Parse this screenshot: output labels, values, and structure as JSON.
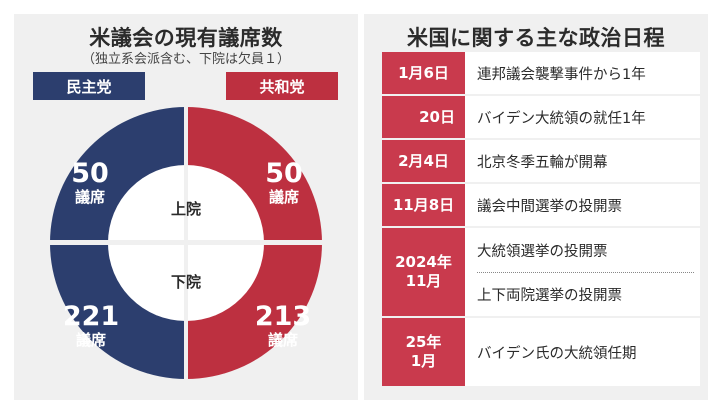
{
  "left_panel": {
    "title": "米議会の現有議席数",
    "subtitle": "（独立系会派含む、下院は欠員１）",
    "parties": {
      "democrat": "民主党",
      "republican": "共和党"
    },
    "upper_house": {
      "label": "上院",
      "democrat_seats": "50",
      "republican_seats": "50"
    },
    "lower_house": {
      "label": "下院",
      "democrat_seats": "221",
      "republican_seats": "213"
    },
    "seat_unit": "議席",
    "colors": {
      "democrat": "#2c3e6e",
      "republican": "#bd3040"
    }
  },
  "right_panel": {
    "title": "米国に関する主な政治日程",
    "schedule": [
      {
        "date": "1月6日",
        "event": "連邦議会襲撃事件から1年"
      },
      {
        "date": "20日",
        "event": "バイデン大統領の就任1年"
      },
      {
        "date": "2月4日",
        "event": "北京冬季五輪が開幕"
      },
      {
        "date": "11月8日",
        "event": "議会中間選挙の投開票"
      },
      {
        "date": "2024年\n11月",
        "event": "大統領選挙の投開票",
        "event2": "上下両院選挙の投開票"
      },
      {
        "date": "25年\n1月",
        "event": "バイデン氏の大統領任期"
      }
    ],
    "colors": {
      "date_bg": "#c93a4d"
    }
  }
}
